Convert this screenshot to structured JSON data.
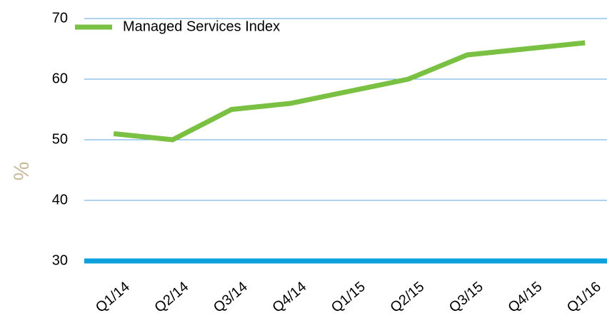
{
  "chart_data": {
    "type": "line",
    "categories": [
      "Q1/14",
      "Q2/14",
      "Q3/14",
      "Q4/14",
      "Q1/15",
      "Q2/15",
      "Q3/15",
      "Q4/15",
      "Q1/16"
    ],
    "series": [
      {
        "name": "Managed Services Index",
        "color": "#7ac143",
        "values": [
          51,
          50,
          55,
          56,
          58,
          60,
          64,
          65,
          66
        ]
      }
    ],
    "y_label": "%",
    "ylim": [
      30,
      70
    ],
    "yticks": [
      30,
      40,
      50,
      60,
      70
    ],
    "grid": true,
    "legend": "upper left"
  }
}
